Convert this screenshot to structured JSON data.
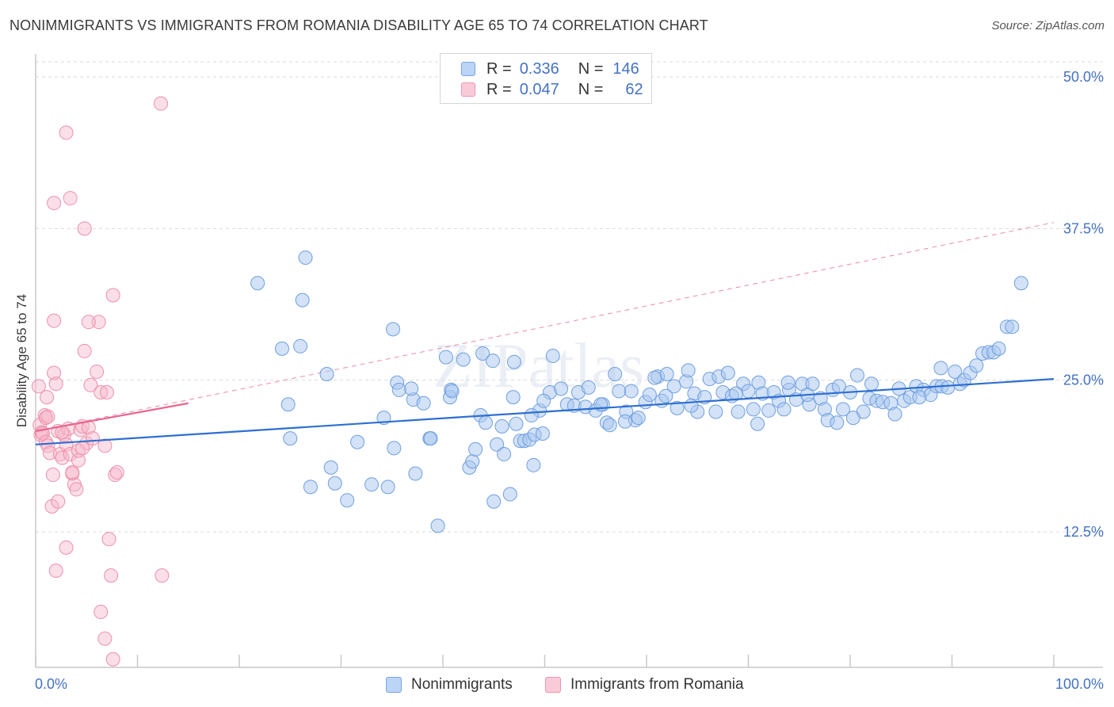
{
  "title": "NONIMMIGRANTS VS IMMIGRANTS FROM ROMANIA DISABILITY AGE 65 TO 74 CORRELATION CHART",
  "source": "Source: ZipAtlas.com",
  "watermark": "ZIPatlas",
  "colors": {
    "blue_fill": "#a8c6f0",
    "blue_stroke": "#6f9fe0",
    "blue_line": "#2e6fd1",
    "pink_fill": "#f7b9cc",
    "pink_stroke": "#ee8fab",
    "pink_line": "#e8668e",
    "accent_text": "#4472c4",
    "grid": "#d9d9d9"
  },
  "legend_top": {
    "rows": [
      {
        "r_label": "R =",
        "r_value": "0.336",
        "n_label": "N =",
        "n_value": "146"
      },
      {
        "r_label": "R =",
        "r_value": "0.047",
        "n_label": "N =",
        "n_value": "62"
      }
    ]
  },
  "legend_bottom": {
    "items": [
      "Nonimmigrants",
      "Immigrants from Romania"
    ]
  },
  "chart_data": {
    "type": "scatter",
    "title": "NONIMMIGRANTS VS IMMIGRANTS FROM ROMANIA DISABILITY AGE 65 TO 74 CORRELATION CHART",
    "xlabel": "",
    "ylabel": "Disability Age 65 to 74",
    "xlim": [
      0,
      100
    ],
    "ylim": [
      0,
      52
    ],
    "x_tick_labels": [
      "0.0%",
      "100.0%"
    ],
    "y_ticks": [
      12.5,
      25.0,
      37.5,
      50.0
    ],
    "y_tick_labels": [
      "12.5%",
      "25.0%",
      "37.5%",
      "50.0%"
    ],
    "grid": "horizontal dashed",
    "legend_placement": "bottom",
    "series": [
      {
        "name": "Nonimmigrants",
        "r": 0.336,
        "n": 146,
        "trend": {
          "x0": 0,
          "y0": 19.7,
          "x1": 100,
          "y1": 25.1
        },
        "points": [
          [
            21.8,
            33.0
          ],
          [
            26.5,
            35.1
          ],
          [
            26.2,
            31.6
          ],
          [
            24.2,
            27.6
          ],
          [
            26.0,
            27.8
          ],
          [
            24.8,
            23.0
          ],
          [
            25.0,
            20.2
          ],
          [
            27.0,
            16.2
          ],
          [
            28.6,
            25.5
          ],
          [
            29.0,
            17.8
          ],
          [
            29.4,
            16.5
          ],
          [
            30.6,
            15.1
          ],
          [
            31.6,
            19.9
          ],
          [
            33.0,
            16.4
          ],
          [
            34.2,
            21.9
          ],
          [
            34.6,
            16.2
          ],
          [
            35.2,
            19.4
          ],
          [
            35.5,
            24.8
          ],
          [
            35.7,
            24.2
          ],
          [
            35.1,
            29.2
          ],
          [
            37.1,
            23.4
          ],
          [
            37.3,
            17.3
          ],
          [
            38.1,
            23.1
          ],
          [
            38.7,
            20.2
          ],
          [
            38.8,
            20.2
          ],
          [
            39.5,
            13.0
          ],
          [
            40.3,
            26.9
          ],
          [
            40.7,
            23.6
          ],
          [
            40.8,
            24.2
          ],
          [
            42.0,
            26.7
          ],
          [
            42.6,
            17.8
          ],
          [
            42.9,
            18.3
          ],
          [
            43.2,
            19.3
          ],
          [
            43.7,
            22.1
          ],
          [
            43.9,
            27.2
          ],
          [
            44.2,
            21.5
          ],
          [
            45.0,
            15.0
          ],
          [
            45.3,
            19.7
          ],
          [
            45.8,
            21.2
          ],
          [
            46.0,
            18.9
          ],
          [
            46.6,
            15.6
          ],
          [
            47.0,
            26.5
          ],
          [
            47.2,
            21.4
          ],
          [
            47.6,
            20.0
          ],
          [
            48.0,
            20.0
          ],
          [
            48.5,
            20.1
          ],
          [
            48.9,
            18.0
          ],
          [
            49.0,
            20.5
          ],
          [
            49.5,
            22.5
          ],
          [
            49.8,
            20.6
          ],
          [
            50.5,
            24.0
          ],
          [
            50.8,
            27.0
          ],
          [
            51.6,
            24.3
          ],
          [
            52.2,
            23.0
          ],
          [
            52.9,
            22.9
          ],
          [
            53.3,
            24.0
          ],
          [
            54.0,
            22.8
          ],
          [
            54.3,
            24.4
          ],
          [
            55.0,
            22.5
          ],
          [
            55.7,
            23.0
          ],
          [
            56.1,
            21.5
          ],
          [
            56.4,
            21.3
          ],
          [
            56.9,
            25.5
          ],
          [
            57.3,
            24.1
          ],
          [
            58.0,
            22.4
          ],
          [
            58.5,
            24.1
          ],
          [
            58.9,
            21.7
          ],
          [
            59.2,
            21.9
          ],
          [
            59.9,
            23.2
          ],
          [
            60.3,
            23.8
          ],
          [
            61.1,
            25.3
          ],
          [
            61.5,
            23.3
          ],
          [
            62.0,
            25.5
          ],
          [
            62.7,
            24.5
          ],
          [
            63.0,
            22.7
          ],
          [
            63.9,
            24.9
          ],
          [
            64.1,
            25.8
          ],
          [
            64.7,
            23.9
          ],
          [
            65.0,
            22.4
          ],
          [
            65.7,
            23.6
          ],
          [
            66.2,
            25.1
          ],
          [
            67.1,
            25.3
          ],
          [
            67.5,
            24.0
          ],
          [
            68.0,
            25.6
          ],
          [
            68.4,
            23.7
          ],
          [
            69.0,
            22.4
          ],
          [
            69.5,
            24.7
          ],
          [
            70.0,
            24.1
          ],
          [
            70.5,
            22.6
          ],
          [
            71.0,
            24.8
          ],
          [
            71.4,
            23.9
          ],
          [
            72.0,
            22.5
          ],
          [
            72.5,
            24.0
          ],
          [
            73.0,
            23.3
          ],
          [
            73.5,
            22.6
          ],
          [
            74.0,
            24.2
          ],
          [
            74.7,
            23.4
          ],
          [
            75.3,
            24.7
          ],
          [
            76.0,
            23.0
          ],
          [
            76.3,
            24.7
          ],
          [
            77.1,
            23.5
          ],
          [
            77.5,
            22.6
          ],
          [
            77.8,
            21.7
          ],
          [
            78.3,
            24.2
          ],
          [
            78.7,
            21.5
          ],
          [
            79.3,
            22.6
          ],
          [
            80.0,
            24.0
          ],
          [
            80.7,
            25.4
          ],
          [
            81.3,
            22.4
          ],
          [
            81.9,
            23.5
          ],
          [
            82.6,
            23.3
          ],
          [
            83.2,
            23.2
          ],
          [
            84.0,
            23.1
          ],
          [
            84.8,
            24.3
          ],
          [
            85.3,
            23.3
          ],
          [
            85.9,
            23.6
          ],
          [
            86.5,
            24.5
          ],
          [
            87.2,
            24.2
          ],
          [
            87.9,
            23.8
          ],
          [
            88.5,
            24.5
          ],
          [
            89.0,
            24.5
          ],
          [
            89.6,
            24.4
          ],
          [
            90.3,
            25.7
          ],
          [
            90.8,
            24.7
          ],
          [
            91.2,
            25.0
          ],
          [
            91.8,
            25.6
          ],
          [
            92.4,
            26.2
          ],
          [
            93.0,
            27.2
          ],
          [
            93.6,
            27.3
          ],
          [
            94.1,
            27.3
          ],
          [
            94.6,
            27.6
          ],
          [
            95.4,
            29.4
          ],
          [
            95.9,
            29.4
          ],
          [
            96.8,
            33.0
          ],
          [
            36.9,
            24.3
          ],
          [
            40.9,
            24.1
          ],
          [
            44.9,
            26.6
          ],
          [
            46.9,
            23.6
          ],
          [
            48.7,
            22.1
          ],
          [
            49.9,
            23.3
          ],
          [
            55.5,
            23.0
          ],
          [
            57.9,
            21.6
          ],
          [
            60.8,
            25.2
          ],
          [
            61.9,
            23.7
          ],
          [
            64.4,
            22.9
          ],
          [
            66.8,
            22.4
          ],
          [
            68.8,
            23.9
          ],
          [
            70.9,
            21.4
          ],
          [
            73.9,
            24.8
          ],
          [
            75.8,
            23.8
          ],
          [
            78.9,
            24.5
          ],
          [
            80.3,
            21.9
          ],
          [
            82.1,
            24.7
          ],
          [
            84.4,
            22.2
          ],
          [
            86.8,
            23.6
          ],
          [
            88.9,
            26.0
          ]
        ]
      },
      {
        "name": "Immigrants from Romania",
        "r": 0.047,
        "n": 62,
        "trend": {
          "x0": 0,
          "y0": 20.8,
          "x1": 15,
          "y1": 23.1
        },
        "trend_extended": {
          "x0": 0,
          "y0": 20.8,
          "x1": 100,
          "y1": 38.0
        },
        "points": [
          [
            0.3,
            24.5
          ],
          [
            0.4,
            21.3
          ],
          [
            0.5,
            20.5
          ],
          [
            0.6,
            20.7
          ],
          [
            0.7,
            20.6
          ],
          [
            0.9,
            22.1
          ],
          [
            1.0,
            21.9
          ],
          [
            1.0,
            19.9
          ],
          [
            1.2,
            19.6
          ],
          [
            1.2,
            22.0
          ],
          [
            1.4,
            19.0
          ],
          [
            1.6,
            14.6
          ],
          [
            1.7,
            17.2
          ],
          [
            1.8,
            25.6
          ],
          [
            2.0,
            24.7
          ],
          [
            2.2,
            20.8
          ],
          [
            2.4,
            18.9
          ],
          [
            2.6,
            18.6
          ],
          [
            2.8,
            20.5
          ],
          [
            3.0,
            19.7
          ],
          [
            3.2,
            21.0
          ],
          [
            3.4,
            18.9
          ],
          [
            3.6,
            17.3
          ],
          [
            3.8,
            16.4
          ],
          [
            4.0,
            16.0
          ],
          [
            4.2,
            18.4
          ],
          [
            4.4,
            20.9
          ],
          [
            4.6,
            21.2
          ],
          [
            4.8,
            27.4
          ],
          [
            5.0,
            19.8
          ],
          [
            5.2,
            21.1
          ],
          [
            5.4,
            24.6
          ],
          [
            5.6,
            20.2
          ],
          [
            6.0,
            25.7
          ],
          [
            6.2,
            29.8
          ],
          [
            6.4,
            24.0
          ],
          [
            6.8,
            19.6
          ],
          [
            7.0,
            24.0
          ],
          [
            7.2,
            11.9
          ],
          [
            7.4,
            8.9
          ],
          [
            7.6,
            32.0
          ],
          [
            7.8,
            17.2
          ],
          [
            8.0,
            17.4
          ],
          [
            1.8,
            39.6
          ],
          [
            3.0,
            45.4
          ],
          [
            3.4,
            40.0
          ],
          [
            4.8,
            37.5
          ],
          [
            12.3,
            47.8
          ],
          [
            12.4,
            8.9
          ],
          [
            1.8,
            29.9
          ],
          [
            2.0,
            9.3
          ],
          [
            2.2,
            15.0
          ],
          [
            3.0,
            11.2
          ],
          [
            4.2,
            19.2
          ],
          [
            5.2,
            29.8
          ],
          [
            6.4,
            5.9
          ],
          [
            6.8,
            3.7
          ],
          [
            7.6,
            2.0
          ],
          [
            1.1,
            23.6
          ],
          [
            2.6,
            20.7
          ],
          [
            3.6,
            17.4
          ],
          [
            4.6,
            19.4
          ]
        ]
      }
    ]
  }
}
